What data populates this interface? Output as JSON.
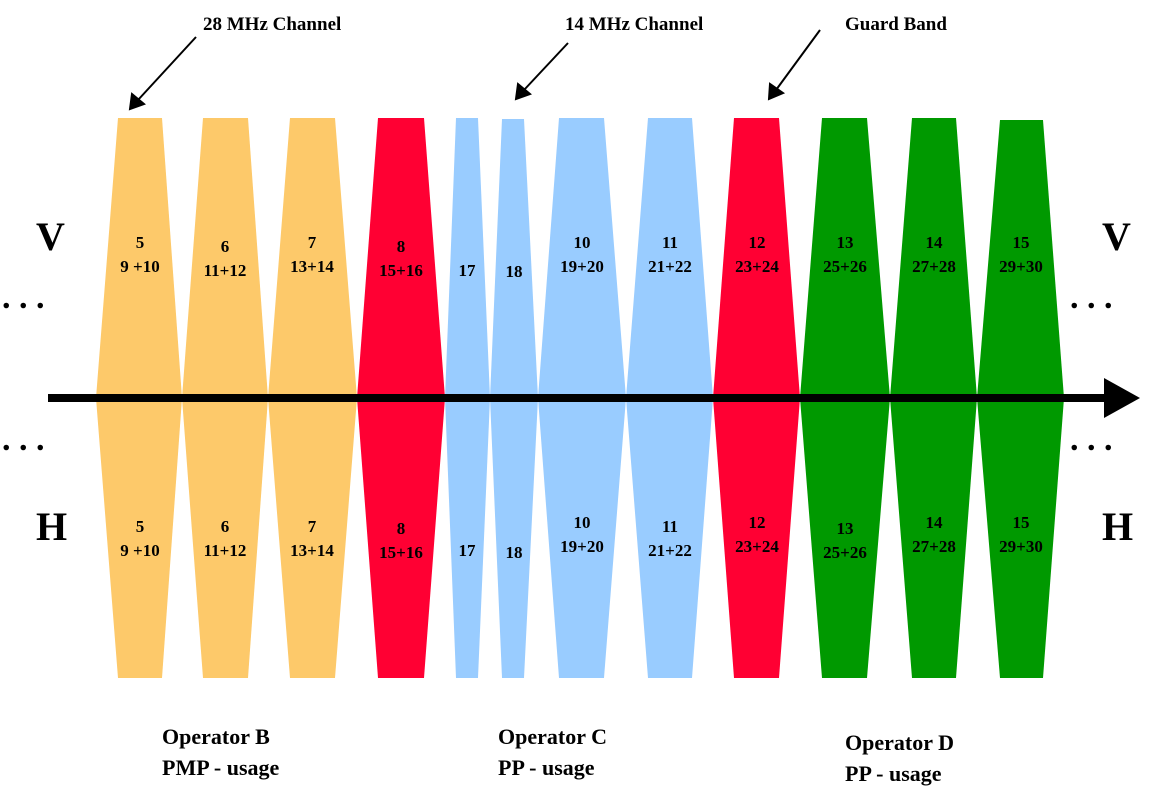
{
  "annotations": {
    "channel_28": "28 MHz Channel",
    "channel_14": "14 MHz Channel",
    "guard_band": "Guard Band"
  },
  "polarization": {
    "top_left": "V",
    "top_right": "V",
    "bottom_left": "H",
    "bottom_right": "H",
    "ellipsis": ". . ."
  },
  "colors": {
    "operator_b": "#FDC96A",
    "operator_c": "#99CCFF",
    "operator_d": "#009900",
    "guard_band": "#FF0033",
    "arrow": "#000000"
  },
  "channels": [
    {
      "id": "ch5",
      "line1": "5",
      "line2": "9 +10",
      "kind": "operator_b"
    },
    {
      "id": "ch6",
      "line1": "6",
      "line2": "11+12",
      "kind": "operator_b"
    },
    {
      "id": "ch7",
      "line1": "7",
      "line2": "13+14",
      "kind": "operator_b"
    },
    {
      "id": "ch8",
      "line1": "8",
      "line2": "15+16",
      "kind": "guard_band"
    },
    {
      "id": "ch17",
      "line1": "17",
      "line2": "",
      "kind": "operator_c"
    },
    {
      "id": "ch18",
      "line1": "18",
      "line2": "",
      "kind": "operator_c"
    },
    {
      "id": "ch10",
      "line1": "10",
      "line2": "19+20",
      "kind": "operator_c"
    },
    {
      "id": "ch11",
      "line1": "11",
      "line2": "21+22",
      "kind": "operator_c"
    },
    {
      "id": "ch12",
      "line1": "12",
      "line2": "23+24",
      "kind": "guard_band"
    },
    {
      "id": "ch13",
      "line1": "13",
      "line2": "25+26",
      "kind": "operator_d"
    },
    {
      "id": "ch14",
      "line1": "14",
      "line2": "27+28",
      "kind": "operator_d"
    },
    {
      "id": "ch15",
      "line1": "15",
      "line2": "29+30",
      "kind": "operator_d"
    }
  ],
  "operators": {
    "b": {
      "name": "Operator B",
      "usage": "PMP - usage"
    },
    "c": {
      "name": "Operator C",
      "usage": "PP - usage"
    },
    "d": {
      "name": "Operator D",
      "usage": "PP - usage"
    }
  }
}
